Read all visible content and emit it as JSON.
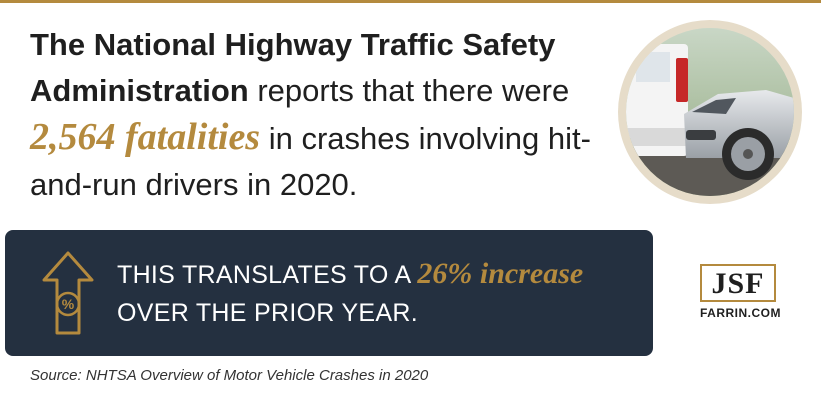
{
  "headline": {
    "strong": "The National Highway Traffic Safety Administration",
    "text1": " reports that there were ",
    "highlight": "2,564 fatalities",
    "text2": " in crashes involving hit-and-run drivers in 2020."
  },
  "banner": {
    "icon": "percent-up-arrow-icon",
    "text1": "THIS TRANSLATES TO A ",
    "highlight": "26% increase",
    "text2": " OVER THE PRIOR YEAR."
  },
  "logo": {
    "initials": "JSF",
    "site": "FARRIN.COM"
  },
  "source": "Source: NHTSA Overview of Motor Vehicle Crashes in 2020",
  "colors": {
    "accent_gold": "#b48a3e",
    "banner_navy": "#243040",
    "text_dark": "#1f1f1f"
  },
  "photo": {
    "subject": "car-crash-photo"
  }
}
